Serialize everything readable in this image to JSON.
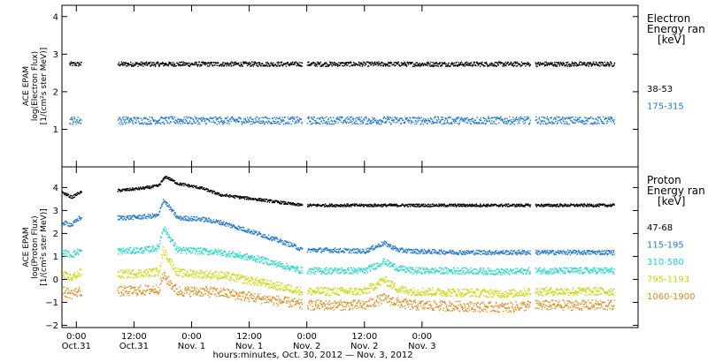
{
  "chart_data": [
    {
      "type": "scatter",
      "panel": "electron",
      "ylabel_lines": [
        "ACE EPAM",
        "log(Electron Flux)",
        "[1/(cm²s ster MeV)]"
      ],
      "legend_title_lines": [
        "Electron",
        "Energy ran",
        "[keV]"
      ],
      "ylim": [
        0,
        4.3
      ],
      "yticks": [
        1,
        2,
        3,
        4
      ],
      "xlim": [
        -3,
        117
      ],
      "gaps": [
        [
          1,
          8.5
        ],
        [
          47,
          48
        ],
        [
          94.5,
          95.5
        ]
      ],
      "series": [
        {
          "name": "38-53",
          "color": "#000000",
          "x": [
            -1.5,
            0,
            10,
            20,
            30,
            40,
            47,
            52,
            60,
            70,
            80,
            90,
            95,
            100,
            110,
            112
          ],
          "y": [
            2.75,
            2.75,
            2.75,
            2.75,
            2.75,
            2.75,
            2.75,
            2.75,
            2.75,
            2.75,
            2.75,
            2.75,
            2.75,
            2.75,
            2.75,
            2.75
          ]
        },
        {
          "name": "175-315",
          "color": "#1f78d2",
          "x": [
            -1.5,
            0,
            10,
            20,
            30,
            40,
            47,
            52,
            60,
            70,
            80,
            90,
            95,
            100,
            110,
            112
          ],
          "y": [
            1.25,
            1.25,
            1.25,
            1.25,
            1.25,
            1.25,
            1.25,
            1.25,
            1.25,
            1.25,
            1.25,
            1.25,
            1.25,
            1.25,
            1.25,
            1.25
          ]
        }
      ]
    },
    {
      "type": "scatter",
      "panel": "proton",
      "ylabel_lines": [
        "ACE EPAM",
        "log(Proton Flux)",
        "[1/(cm²s ster MeV)]"
      ],
      "legend_title_lines": [
        "Proton",
        "Energy ran",
        "[keV]"
      ],
      "ylim": [
        -2.1,
        4.9
      ],
      "yticks": [
        -2,
        -1,
        0,
        1,
        2,
        3,
        4
      ],
      "xlim": [
        -3,
        117
      ],
      "gaps": [
        [
          1,
          8.5
        ],
        [
          47,
          48
        ],
        [
          94.5,
          95.5
        ]
      ],
      "series": [
        {
          "name": "47-68",
          "color": "#000000",
          "x": [
            -3,
            -1,
            0.5,
            9,
            14,
            17,
            18.5,
            21,
            26,
            30,
            38,
            45,
            47,
            52,
            60,
            70,
            80,
            90,
            95,
            100,
            112
          ],
          "y": [
            3.8,
            3.6,
            3.8,
            3.9,
            4.0,
            4.1,
            4.5,
            4.2,
            4.0,
            3.7,
            3.5,
            3.3,
            3.25,
            3.25,
            3.25,
            3.25,
            3.25,
            3.25,
            3.25,
            3.25,
            3.25
          ]
        },
        {
          "name": "115-195",
          "color": "#1f78d2",
          "x": [
            -3,
            -1,
            0.5,
            9,
            14,
            17,
            18,
            21,
            26,
            30,
            38,
            45,
            47,
            52,
            60,
            64,
            67,
            70,
            80,
            90,
            95,
            100,
            112
          ],
          "y": [
            2.5,
            2.4,
            2.7,
            2.7,
            2.75,
            2.8,
            3.5,
            2.7,
            2.65,
            2.5,
            2.0,
            1.5,
            1.3,
            1.3,
            1.25,
            1.6,
            1.3,
            1.25,
            1.2,
            1.2,
            1.2,
            1.2,
            1.2
          ]
        },
        {
          "name": "310-580",
          "color": "#20d8c8",
          "x": [
            -3,
            -1,
            0.5,
            9,
            14,
            17,
            18,
            21,
            26,
            30,
            38,
            45,
            47,
            52,
            60,
            64,
            67,
            70,
            80,
            90,
            95,
            100,
            112
          ],
          "y": [
            1.2,
            1.1,
            1.25,
            1.25,
            1.3,
            1.4,
            2.3,
            1.3,
            1.25,
            1.2,
            0.9,
            0.5,
            0.4,
            0.4,
            0.4,
            0.8,
            0.5,
            0.4,
            0.4,
            0.35,
            0.4,
            0.4,
            0.4
          ]
        },
        {
          "name": "795-1193",
          "color": "#c8d800",
          "x": [
            -3,
            -1,
            0.5,
            9,
            14,
            17,
            18,
            21,
            26,
            30,
            38,
            45,
            47,
            52,
            60,
            64,
            67,
            70,
            80,
            90,
            95,
            100,
            112
          ],
          "y": [
            0.2,
            0.1,
            0.3,
            0.25,
            0.3,
            0.35,
            1.3,
            0.3,
            0.25,
            0.2,
            -0.1,
            -0.4,
            -0.5,
            -0.5,
            -0.5,
            0.0,
            -0.4,
            -0.5,
            -0.55,
            -0.6,
            -0.5,
            -0.5,
            -0.5
          ]
        },
        {
          "name": "1060-1900",
          "color": "#e08a1a",
          "x": [
            -3,
            -1,
            0.5,
            9,
            14,
            17,
            18,
            21,
            26,
            30,
            38,
            45,
            47,
            52,
            60,
            64,
            67,
            70,
            80,
            90,
            95,
            100,
            112
          ],
          "y": [
            -0.5,
            -0.6,
            -0.5,
            -0.5,
            -0.45,
            -0.4,
            0.2,
            -0.5,
            -0.5,
            -0.55,
            -0.8,
            -1.0,
            -1.1,
            -1.1,
            -1.1,
            -0.8,
            -1.0,
            -1.1,
            -1.15,
            -1.2,
            -1.1,
            -1.1,
            -1.1
          ]
        }
      ]
    }
  ],
  "x_axis": {
    "ticks": [
      {
        "x": 0,
        "time": "0:00",
        "date": "Oct.31"
      },
      {
        "x": 12,
        "time": "12:00",
        "date": "Oct.31"
      },
      {
        "x": 24,
        "time": "0:00",
        "date": "Nov. 1"
      },
      {
        "x": 36,
        "time": "12:00",
        "date": "Nov. 1"
      },
      {
        "x": 48,
        "time": "0:00",
        "date": "Nov. 2"
      },
      {
        "x": 60,
        "time": "12:00",
        "date": "Nov. 2"
      },
      {
        "x": 72,
        "time": "0:00",
        "date": "Nov. 3"
      }
    ],
    "label": "hours:minutes, Oct. 30, 2012 — Nov.  3, 2012"
  }
}
